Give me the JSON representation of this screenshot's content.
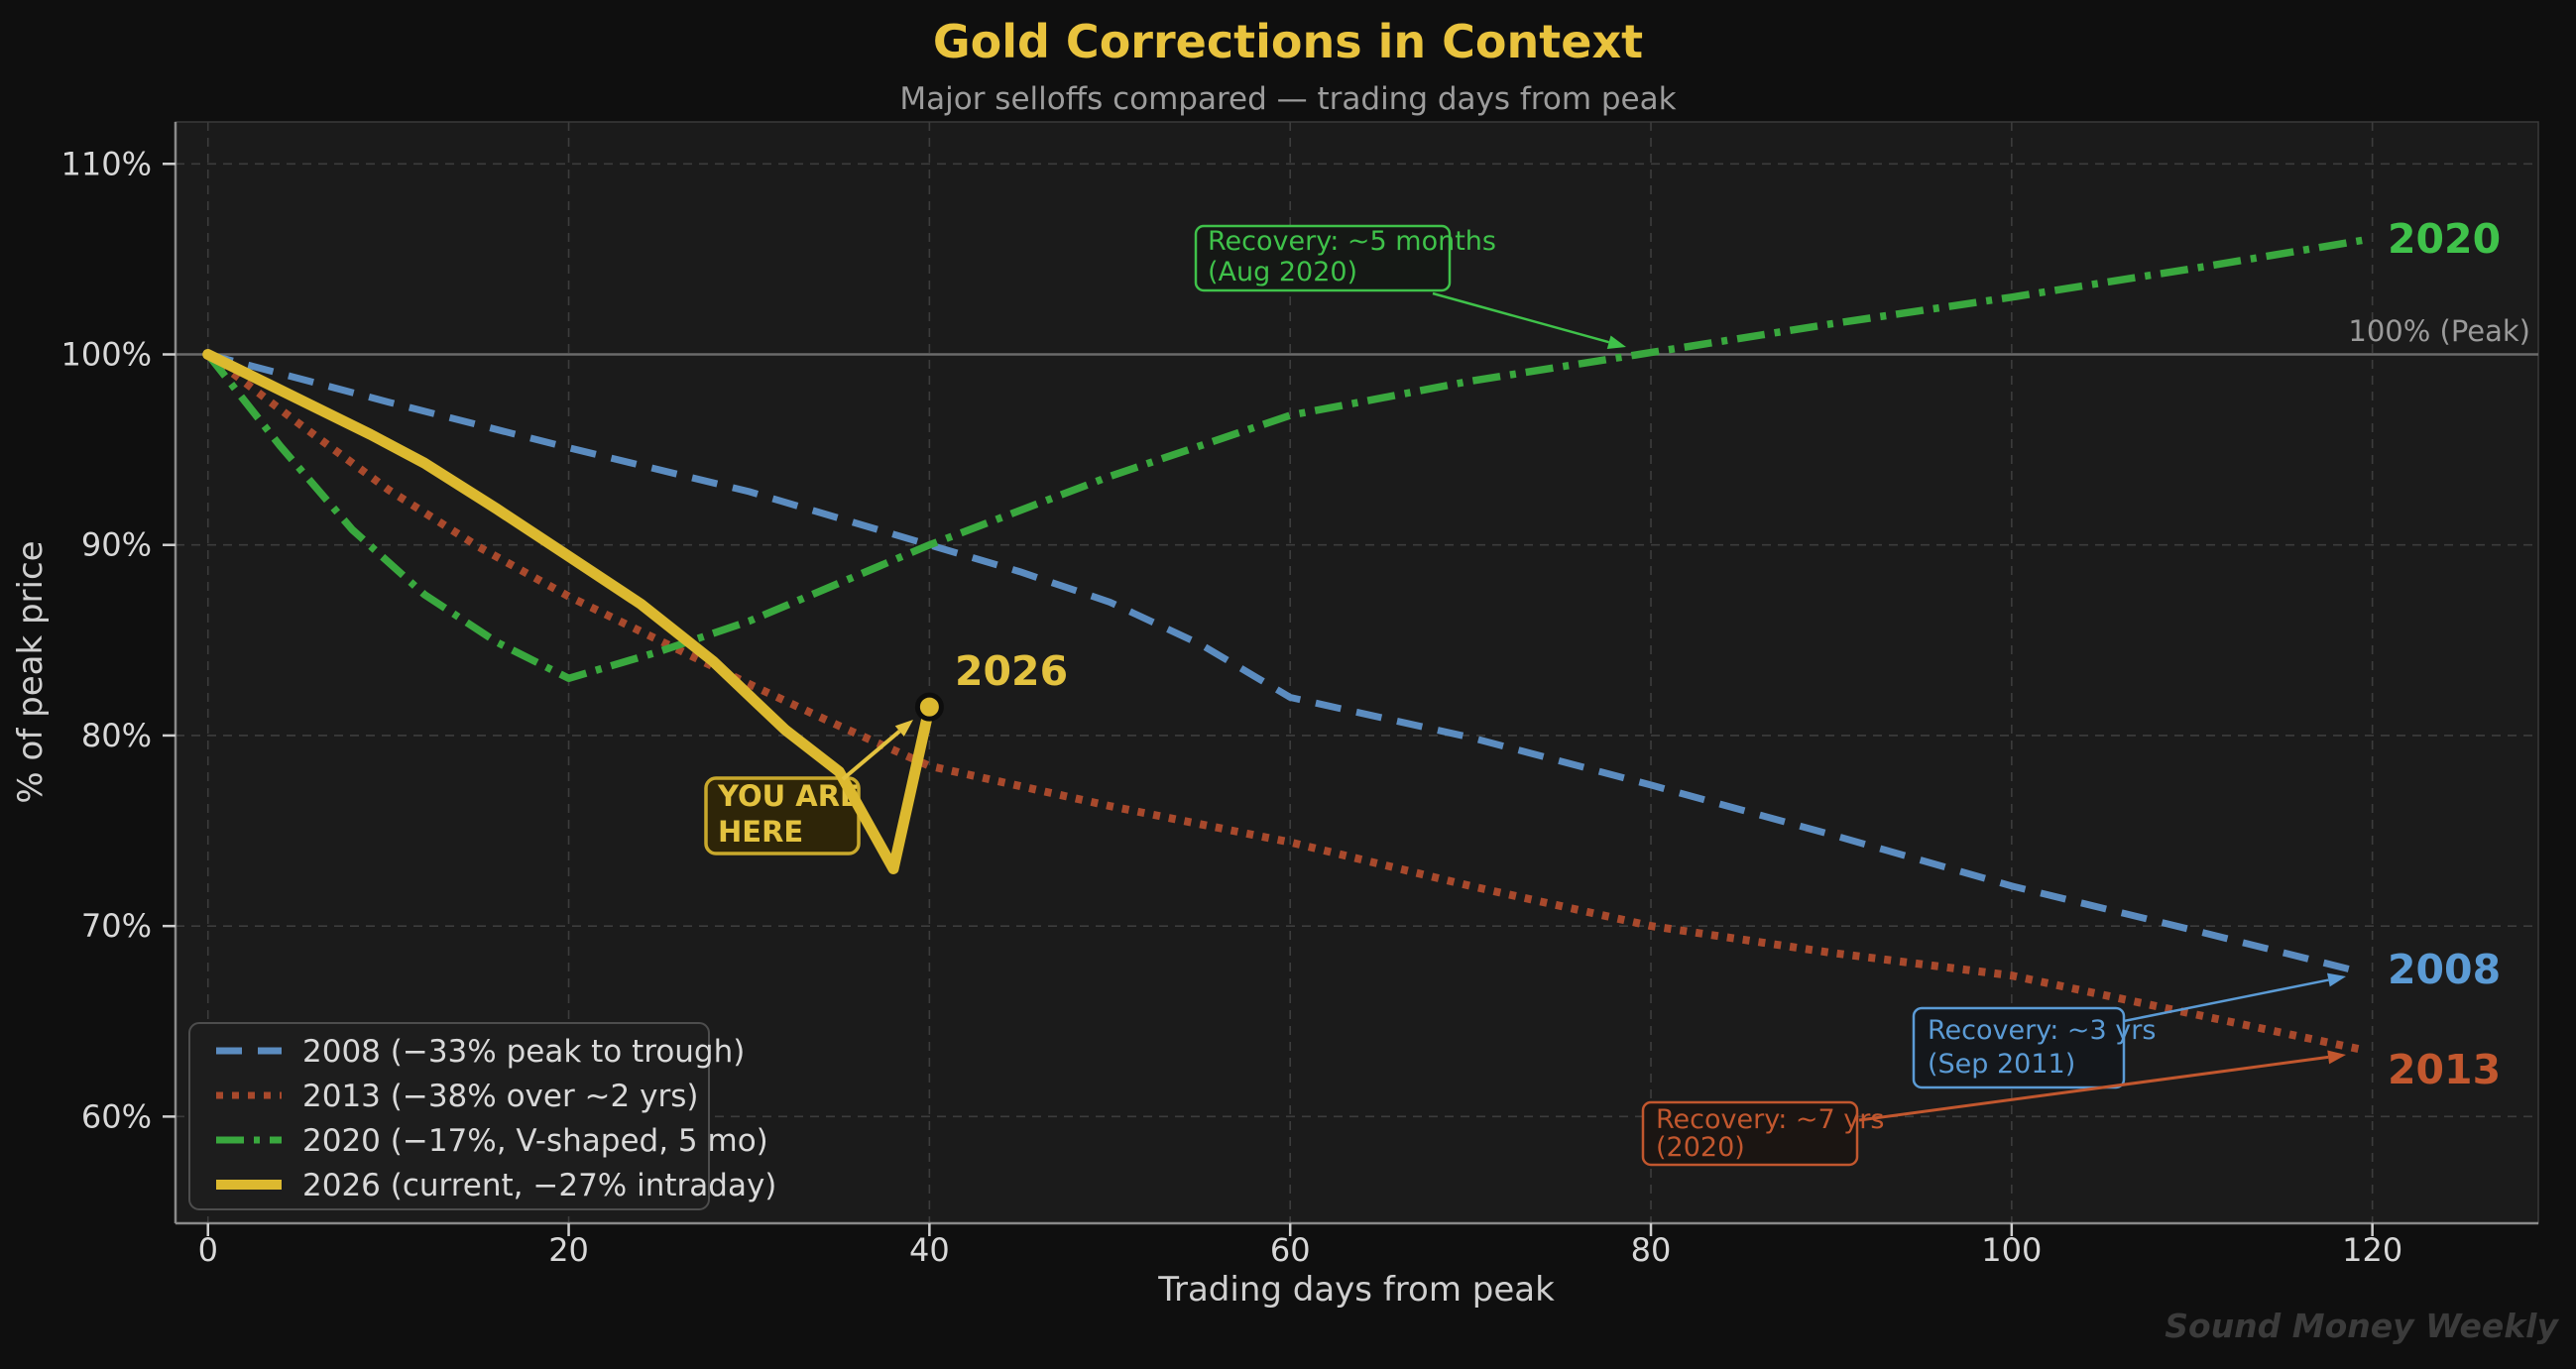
{
  "header": {
    "title": "Gold Corrections in Context",
    "subtitle": "Major selloffs compared — trading days from peak"
  },
  "watermark": "Sound Money Weekly",
  "chart_data": {
    "type": "line",
    "title": "Gold Corrections in Context",
    "subtitle": "Major selloffs compared — trading days from peak",
    "xlabel": "Trading days from peak",
    "ylabel": "% of peak price",
    "x_ticks": [
      0,
      20,
      40,
      60,
      80,
      100,
      120
    ],
    "y_ticks": [
      60,
      70,
      80,
      90,
      100,
      110
    ],
    "y_tick_suffix": "%",
    "xlim": [
      -1.8,
      129.2
    ],
    "ylim": [
      54.4,
      112.2
    ],
    "grid": true,
    "legend_position": "lower left",
    "reference_line": {
      "y": 100,
      "label": "100% (Peak)",
      "color": "#6a6a6a"
    },
    "series": [
      {
        "name": "2008",
        "legend": "2008 (−33% peak to trough)",
        "style": "dashed",
        "color": "#5b8cc0",
        "label_color": "#5b9bd5",
        "end_label": "2008",
        "points": [
          [
            0,
            100
          ],
          [
            10,
            97.5
          ],
          [
            20,
            95.1
          ],
          [
            30,
            92.8
          ],
          [
            40,
            90
          ],
          [
            45,
            88.6
          ],
          [
            50,
            87
          ],
          [
            55,
            84.8
          ],
          [
            60,
            82
          ],
          [
            70,
            79.9
          ],
          [
            80,
            77.4
          ],
          [
            90,
            74.8
          ],
          [
            100,
            72.1
          ],
          [
            110,
            69.8
          ],
          [
            119.3,
            67.6
          ]
        ]
      },
      {
        "name": "2013",
        "legend": "2013 (−38% over ~2 yrs)",
        "style": "dotted",
        "color": "#a8492c",
        "label_color": "#c2572e",
        "end_label": "2013",
        "points": [
          [
            0,
            100
          ],
          [
            5,
            96.4
          ],
          [
            10,
            92.9
          ],
          [
            15,
            89.9
          ],
          [
            20,
            87.3
          ],
          [
            25,
            85
          ],
          [
            30,
            82.7
          ],
          [
            35,
            80.5
          ],
          [
            40,
            78.4
          ],
          [
            50,
            76.3
          ],
          [
            60,
            74.4
          ],
          [
            70,
            72.1
          ],
          [
            80,
            70
          ],
          [
            90,
            68.6
          ],
          [
            100,
            67.4
          ],
          [
            110,
            65.4
          ],
          [
            119.5,
            63.5
          ]
        ]
      },
      {
        "name": "2020",
        "legend": "2020 (−17%, V-shaped, 5 mo)",
        "style": "dashdot",
        "color": "#39a83e",
        "label_color": "#3fc24a",
        "end_label": "2020",
        "points": [
          [
            0,
            100
          ],
          [
            4,
            95.2
          ],
          [
            8,
            90.8
          ],
          [
            12,
            87.4
          ],
          [
            16,
            84.9
          ],
          [
            20,
            83
          ],
          [
            25,
            84.4
          ],
          [
            30,
            86
          ],
          [
            35,
            88
          ],
          [
            40,
            90
          ],
          [
            50,
            93.6
          ],
          [
            60,
            96.8
          ],
          [
            70,
            98.6
          ],
          [
            80,
            100.1
          ],
          [
            90,
            101.6
          ],
          [
            100,
            103
          ],
          [
            110,
            104.5
          ],
          [
            119.5,
            106
          ]
        ]
      },
      {
        "name": "2026",
        "legend": "2026 (current, −27% intraday)",
        "style": "solid",
        "color": "#dcb92f",
        "label_color": "#e3c23f",
        "end_label": "2026",
        "marker_end": true,
        "points": [
          [
            0,
            100
          ],
          [
            3,
            98.6
          ],
          [
            6,
            97.2
          ],
          [
            9,
            95.8
          ],
          [
            12,
            94.3
          ],
          [
            16,
            91.9
          ],
          [
            20,
            89.4
          ],
          [
            24,
            86.9
          ],
          [
            28,
            83.9
          ],
          [
            32,
            80.3
          ],
          [
            35,
            78.1
          ],
          [
            38,
            73
          ],
          [
            40,
            81.5
          ]
        ]
      }
    ]
  },
  "annotations": {
    "recovery_2020": {
      "line1": "Recovery: ~5 months",
      "line2": "(Aug 2020)",
      "color": "#3fc24a"
    },
    "recovery_2008": {
      "line1": "Recovery: ~3 yrs",
      "line2": "(Sep 2011)",
      "color": "#5b9bd5"
    },
    "recovery_2013": {
      "line1": "Recovery: ~7 yrs",
      "line2": "(2020)",
      "color": "#c2572e"
    },
    "you_are_here": {
      "line1": "YOU ARE",
      "line2": "HERE",
      "color": "#e3c23f"
    }
  }
}
